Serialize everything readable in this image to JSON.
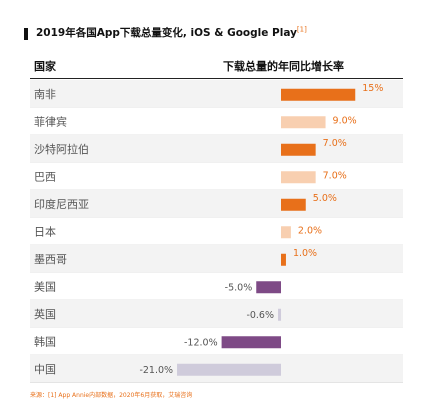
{
  "title": "2019年各国App下载总量变化, iOS & Google Play",
  "title_ref": "[1]",
  "header": {
    "country": "国家",
    "growth": "下载总量的年同比增长率"
  },
  "footnote": "来源：[1] App Annie内部数据，2020年6月获取，艾瑞咨询",
  "colors": {
    "orange": "#e8701a",
    "peach": "#f8cfb0",
    "purple": "#7e4a86",
    "lavender": "#cfcbdb"
  },
  "chart_data": {
    "type": "bar",
    "categories": [
      "南非",
      "菲律宾",
      "沙特阿拉伯",
      "巴西",
      "印度尼西亚",
      "日本",
      "墨西哥",
      "美国",
      "英国",
      "韩国",
      "中国"
    ],
    "values": [
      15,
      9.0,
      7.0,
      7.0,
      5.0,
      2.0,
      1.0,
      -5.0,
      -0.6,
      -12.0,
      -21.0
    ],
    "labels": [
      "15%",
      "9.0%",
      "7.0%",
      "7.0%",
      "5.0%",
      "2.0%",
      "1.0%",
      "-5.0%",
      "-0.6%",
      "-12.0%",
      "-21.0%"
    ],
    "bar_colors": [
      "orange",
      "peach",
      "orange",
      "peach",
      "orange",
      "peach",
      "orange",
      "purple",
      "lavender",
      "purple",
      "lavender"
    ],
    "unit": "%"
  }
}
